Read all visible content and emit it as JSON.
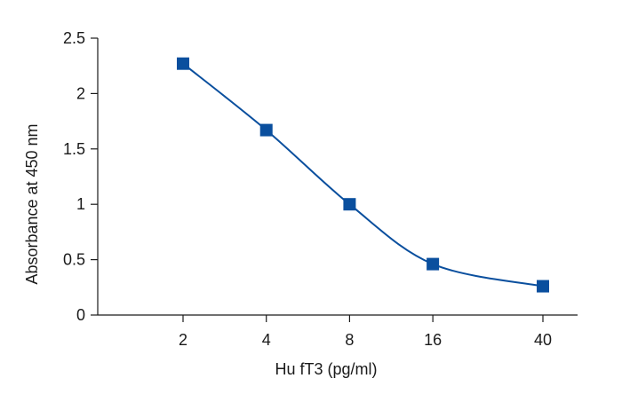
{
  "chart_data": {
    "type": "scatter",
    "title": "",
    "xlabel": "Hu fT3 (pg/ml)",
    "ylabel": "Absorbance at 450 nm",
    "x_scale": "log",
    "x_ticks": [
      2,
      4,
      8,
      16,
      40
    ],
    "x_tick_labels": [
      "2",
      "4",
      "8",
      "16",
      "40"
    ],
    "y_ticks": [
      0,
      0.5,
      1,
      1.5,
      2,
      2.5
    ],
    "y_tick_labels": [
      "0",
      "0.5",
      "1",
      "1.5",
      "2",
      "2.5"
    ],
    "ylim": [
      0,
      2.5
    ],
    "grid": false,
    "legend": "none",
    "series": [
      {
        "x": [
          2,
          4,
          8,
          16,
          40
        ],
        "y": [
          2.27,
          1.67,
          1.0,
          0.46,
          0.26
        ],
        "marker": "square",
        "line": "smooth-fit",
        "color": "#0a4f9e"
      }
    ]
  }
}
